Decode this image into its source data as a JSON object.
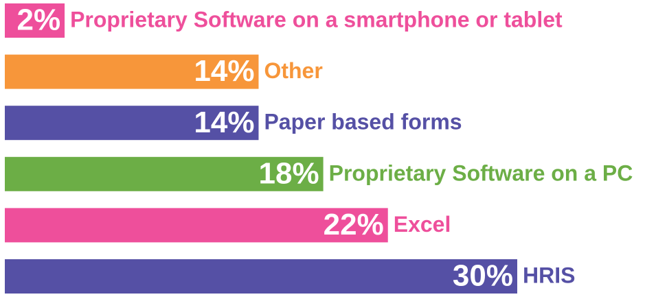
{
  "chart_data": {
    "type": "bar",
    "orientation": "horizontal",
    "categories": [
      "Proprietary Software on a smartphone or tablet",
      "Other",
      "Paper based forms",
      "Proprietary Software on a PC",
      "Excel",
      "HRIS"
    ],
    "values": [
      2,
      14,
      14,
      18,
      22,
      30
    ],
    "value_labels": [
      "2%",
      "14%",
      "14%",
      "18%",
      "22%",
      "30%"
    ],
    "colors": [
      "#ee4f9b",
      "#f7963a",
      "#5550a5",
      "#6cae46",
      "#ee4f9b",
      "#5550a5"
    ]
  }
}
